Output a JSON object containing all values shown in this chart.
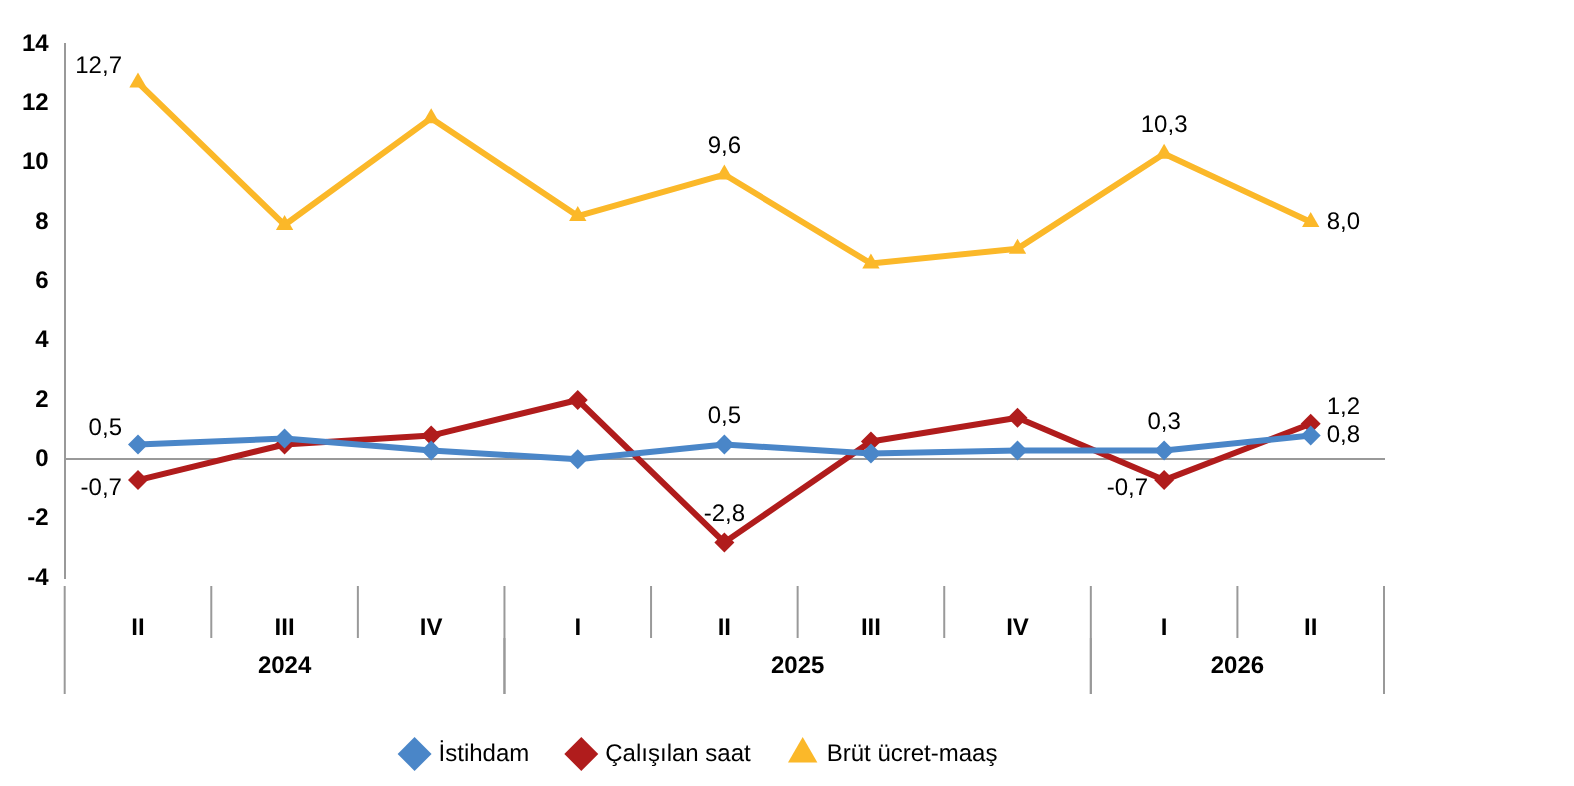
{
  "chart_data": {
    "type": "line",
    "categories": [
      "II",
      "III",
      "IV",
      "I",
      "II",
      "III",
      "IV",
      "I",
      "II"
    ],
    "series": [
      {
        "name": "İstihdam",
        "color": "#4a86c8",
        "marker": "diamond",
        "values": [
          0.5,
          0.7,
          0.3,
          0.0,
          0.5,
          0.2,
          0.3,
          0.3,
          0.8
        ],
        "value_labels": [
          "0,5",
          null,
          null,
          null,
          "0,5",
          null,
          null,
          "0,3",
          "0,8"
        ]
      },
      {
        "name": "Çalışılan saat",
        "color": "#b01c1c",
        "marker": "diamond",
        "values": [
          -0.7,
          0.5,
          0.8,
          2.0,
          -2.8,
          0.6,
          1.4,
          -0.7,
          1.2
        ],
        "value_labels": [
          "-0,7",
          null,
          null,
          null,
          "-2,8",
          null,
          null,
          "-0,7",
          "1,2"
        ]
      },
      {
        "name": "Brüt ücret-maaş",
        "color": "#fbb829",
        "marker": "triangle",
        "values": [
          12.7,
          7.9,
          11.5,
          8.2,
          9.6,
          6.6,
          7.1,
          10.3,
          8.0
        ],
        "value_labels": [
          "12,7",
          null,
          null,
          null,
          "9,6",
          null,
          null,
          "10,3",
          "8,0"
        ]
      }
    ],
    "ylim": [
      -4,
      14
    ],
    "yticks": [
      -4,
      -2,
      0,
      2,
      4,
      6,
      8,
      10,
      12,
      14
    ],
    "annotations": [
      "2024",
      "2025",
      "2026"
    ],
    "legend": "bottom"
  }
}
